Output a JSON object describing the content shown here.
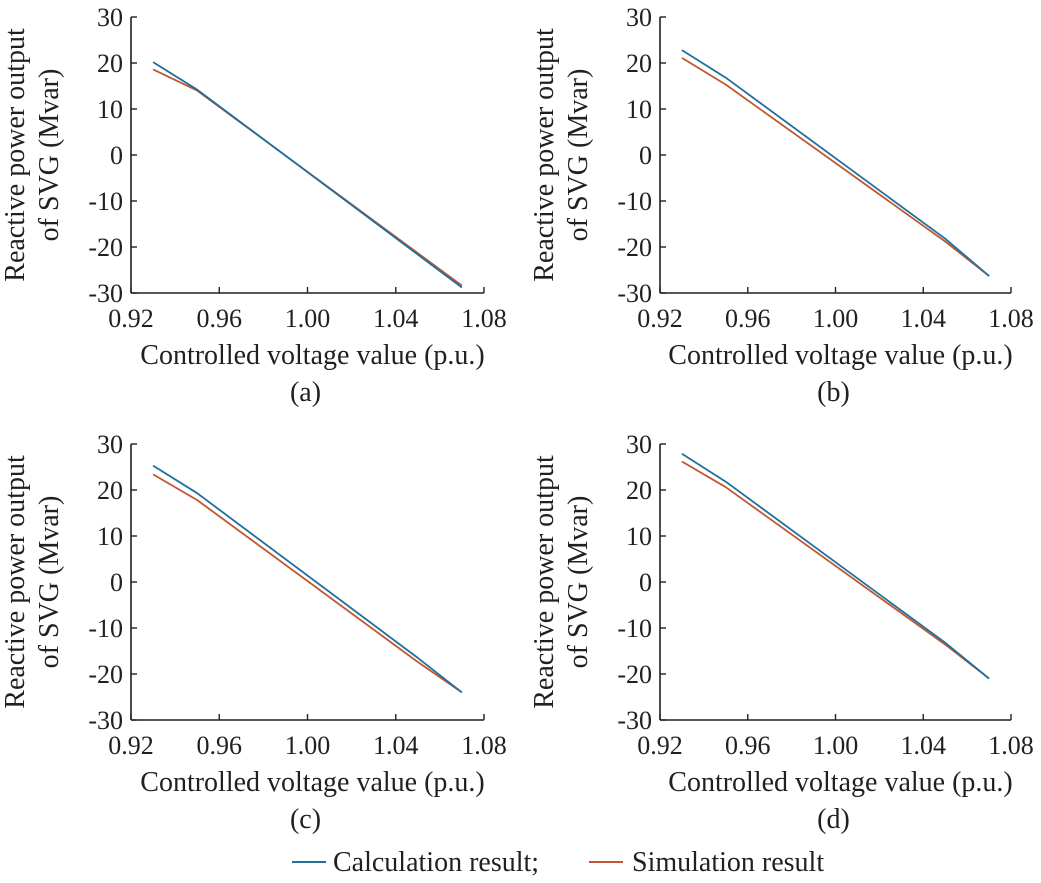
{
  "colors": {
    "calculation": "#1f6f9f",
    "simulation": "#c0582f",
    "axis": "#231f20"
  },
  "legend": {
    "items": [
      {
        "label": "Calculation result;",
        "series": "calculation"
      },
      {
        "label": "Simulation result",
        "series": "simulation"
      }
    ],
    "placement": "bottom-center"
  },
  "chart_data": [
    {
      "type": "line",
      "panel_label": "(a)",
      "xlabel": "Controlled voltage value (p.u.)",
      "ylabel_lines": [
        "Reactive power output",
        "of SVG (Mvar)"
      ],
      "xlim": [
        0.92,
        1.08
      ],
      "ylim": [
        -30,
        30
      ],
      "xticks": [
        "0.92",
        "0.96",
        "1.00",
        "1.04",
        "1.08"
      ],
      "yticks": [
        "30",
        "20",
        "10",
        "0",
        "-10",
        "-20",
        "-30"
      ],
      "grid": false,
      "series": [
        {
          "key": "calculation",
          "x": [
            0.93,
            0.95,
            1.07
          ],
          "y": [
            20.2,
            14.2,
            -28.8
          ]
        },
        {
          "key": "simulation",
          "x": [
            0.93,
            0.95,
            1.07
          ],
          "y": [
            18.6,
            14.0,
            -28.4
          ]
        }
      ]
    },
    {
      "type": "line",
      "panel_label": "(b)",
      "xlabel": "Controlled voltage value (p.u.)",
      "ylabel_lines": [
        "Reactive power output",
        "of SVG (Mvar)"
      ],
      "xlim": [
        0.92,
        1.08
      ],
      "ylim": [
        -30,
        30
      ],
      "xticks": [
        "0.92",
        "0.96",
        "1.00",
        "1.04",
        "1.08"
      ],
      "yticks": [
        "30",
        "20",
        "10",
        "0",
        "-10",
        "-20",
        "-30"
      ],
      "grid": false,
      "series": [
        {
          "key": "calculation",
          "x": [
            0.93,
            0.95,
            1.05,
            1.07
          ],
          "y": [
            22.8,
            16.8,
            -18.2,
            -26.3
          ]
        },
        {
          "key": "simulation",
          "x": [
            0.93,
            0.95,
            1.05,
            1.07
          ],
          "y": [
            21.1,
            15.3,
            -18.8,
            -26.3
          ]
        }
      ]
    },
    {
      "type": "line",
      "panel_label": "(c)",
      "xlabel": "Controlled voltage value (p.u.)",
      "ylabel_lines": [
        "Reactive power output",
        "of SVG (Mvar)"
      ],
      "xlim": [
        0.92,
        1.08
      ],
      "ylim": [
        -30,
        30
      ],
      "xticks": [
        "0.92",
        "0.96",
        "1.00",
        "1.04",
        "1.08"
      ],
      "yticks": [
        "30",
        "20",
        "10",
        "0",
        "-10",
        "-20",
        "-30"
      ],
      "grid": false,
      "series": [
        {
          "key": "calculation",
          "x": [
            0.93,
            0.95,
            1.05,
            1.07
          ],
          "y": [
            25.3,
            19.3,
            -16.5,
            -24.0
          ]
        },
        {
          "key": "simulation",
          "x": [
            0.93,
            0.95,
            1.05,
            1.07
          ],
          "y": [
            23.4,
            17.8,
            -17.4,
            -24.0
          ]
        }
      ]
    },
    {
      "type": "line",
      "panel_label": "(d)",
      "xlabel": "Controlled voltage value (p.u.)",
      "ylabel_lines": [
        "Reactive power output",
        "of SVG (Mvar)"
      ],
      "xlim": [
        0.92,
        1.08
      ],
      "ylim": [
        -30,
        30
      ],
      "xticks": [
        "0.92",
        "0.96",
        "1.00",
        "1.04",
        "1.08"
      ],
      "yticks": [
        "30",
        "20",
        "10",
        "0",
        "-10",
        "-20",
        "-30"
      ],
      "grid": false,
      "series": [
        {
          "key": "calculation",
          "x": [
            0.93,
            0.95,
            1.05,
            1.07
          ],
          "y": [
            27.9,
            21.8,
            -13.2,
            -21.0
          ]
        },
        {
          "key": "simulation",
          "x": [
            0.93,
            0.95,
            1.05,
            1.07
          ],
          "y": [
            26.2,
            20.6,
            -13.6,
            -21.0
          ]
        }
      ]
    }
  ]
}
